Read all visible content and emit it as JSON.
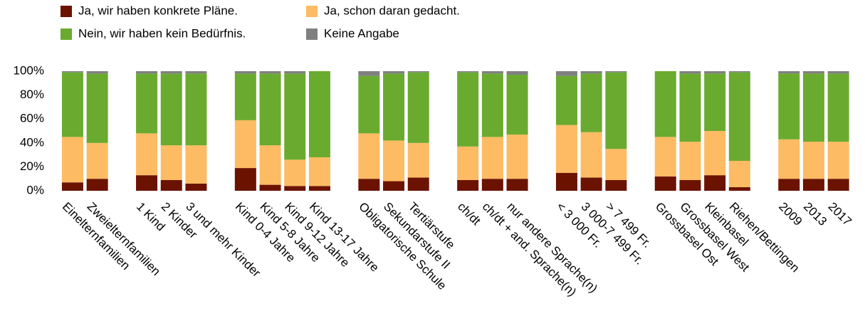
{
  "chart_data": {
    "type": "stacked_bar",
    "categories": [
      "Einelternfamilien",
      "Zweielternfamilien",
      null,
      "1 Kind",
      "2 Kinder",
      "3 und mehr Kinder",
      null,
      "Kind 0-4 Jahre",
      "Kind 5-8 Jahre",
      "Kind 9-12 Jahre",
      "Kind 13-17 Jahre",
      null,
      "Obligatorische Schule",
      "Sekundarstufe II",
      "Tertiärstufe",
      null,
      "ch/dt",
      "ch/dt + and. Sprache(n)",
      "nur andere Sprache(n)",
      null,
      "< 3 000 Fr.",
      "3 000-7 499 Fr.",
      "> 7 499 Fr.",
      null,
      "Grossbasel Ost",
      "Grossbasel West",
      "Kleinbasel",
      "Riehen/Bettingen",
      null,
      "2009",
      "2013",
      "2017"
    ],
    "series": [
      {
        "name": "Ja, wir haben konkrete Pläne.",
        "color": "#6b1300",
        "values": [
          7,
          10,
          null,
          13,
          9,
          6,
          null,
          19,
          5,
          4,
          4,
          null,
          10,
          8,
          11,
          null,
          9,
          10,
          10,
          null,
          15,
          11,
          9,
          null,
          12,
          9,
          13,
          3,
          null,
          10,
          10,
          10
        ]
      },
      {
        "name": "Ja, schon daran gedacht.",
        "color": "#fdbb63",
        "values": [
          38,
          30,
          null,
          35,
          29,
          32,
          null,
          40,
          33,
          22,
          24,
          null,
          38,
          34,
          29,
          null,
          28,
          35,
          37,
          null,
          40,
          38,
          26,
          null,
          33,
          32,
          37,
          22,
          null,
          33,
          31,
          31
        ]
      },
      {
        "name": "Nein, wir haben kein Bedürfnis.",
        "color": "#6aab2f",
        "values": [
          54,
          58,
          null,
          50,
          60,
          60,
          null,
          39,
          60,
          72,
          72,
          null,
          48,
          56,
          59,
          null,
          62,
          53,
          50,
          null,
          41,
          49,
          64,
          null,
          55,
          57,
          48,
          74,
          null,
          55,
          57,
          57
        ]
      },
      {
        "name": "Keine Angabe",
        "color": "#808080",
        "values": [
          1,
          2,
          null,
          2,
          2,
          2,
          null,
          2,
          2,
          2,
          0,
          null,
          4,
          2,
          1,
          null,
          1,
          2,
          3,
          null,
          4,
          2,
          1,
          null,
          0,
          2,
          2,
          1,
          null,
          2,
          2,
          2
        ]
      }
    ],
    "ylim": [
      0,
      100
    ],
    "yticks": [
      {
        "value": 0,
        "label": "0%"
      },
      {
        "value": 20,
        "label": "20%"
      },
      {
        "value": 40,
        "label": "40%"
      },
      {
        "value": 60,
        "label": "60%"
      },
      {
        "value": 80,
        "label": "80%"
      },
      {
        "value": 100,
        "label": "100%"
      }
    ],
    "grid": false,
    "legend": "top-left"
  }
}
